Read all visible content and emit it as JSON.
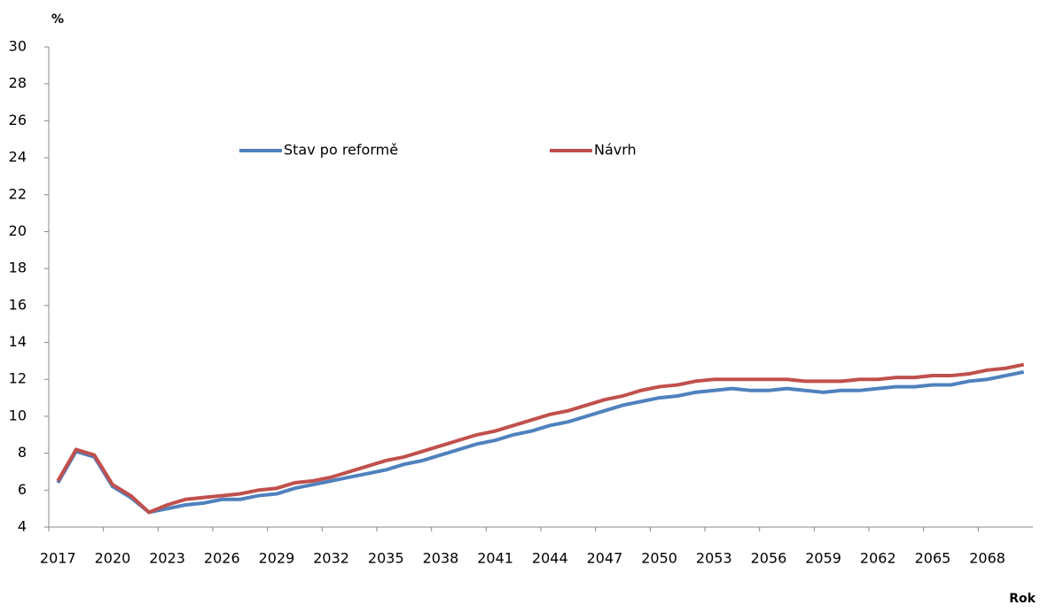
{
  "chart_data": {
    "type": "line",
    "y_label": "%",
    "x_label": "Rok",
    "categories": [
      "2017",
      null,
      null,
      "2020",
      null,
      null,
      "2023",
      null,
      null,
      "2026",
      null,
      null,
      "2029",
      null,
      null,
      "2032",
      null,
      null,
      "2035",
      null,
      null,
      "2038",
      null,
      null,
      "2041",
      null,
      null,
      "2044",
      null,
      null,
      "2047",
      null,
      null,
      "2050",
      null,
      null,
      "2053",
      null,
      null,
      "2056",
      null,
      null,
      "2059",
      null,
      null,
      "2062",
      null,
      null,
      "2065",
      null,
      null,
      "2068",
      null,
      null
    ],
    "series": [
      {
        "name": "Stav po reformě",
        "color": "#4f81bd",
        "values": [
          6.4,
          8.1,
          7.8,
          6.2,
          5.6,
          4.8,
          5.0,
          5.2,
          5.3,
          5.5,
          5.5,
          5.7,
          5.8,
          6.1,
          6.3,
          6.5,
          6.7,
          6.9,
          7.1,
          7.4,
          7.6,
          7.9,
          8.2,
          8.5,
          8.7,
          9.0,
          9.2,
          9.5,
          9.7,
          10.0,
          10.3,
          10.6,
          10.8,
          11.0,
          11.1,
          11.3,
          11.4,
          11.5,
          11.4,
          11.4,
          11.5,
          11.4,
          11.3,
          11.4,
          11.4,
          11.5,
          11.6,
          11.6,
          11.7,
          11.7,
          11.9,
          12.0,
          12.2,
          12.4
        ]
      },
      {
        "name": "Návrh",
        "color": "#c0504d",
        "values": [
          6.5,
          8.2,
          7.9,
          6.3,
          5.7,
          4.8,
          5.2,
          5.5,
          5.6,
          5.7,
          5.8,
          6.0,
          6.1,
          6.4,
          6.5,
          6.7,
          7.0,
          7.3,
          7.6,
          7.8,
          8.1,
          8.4,
          8.7,
          9.0,
          9.2,
          9.5,
          9.8,
          10.1,
          10.3,
          10.6,
          10.9,
          11.1,
          11.4,
          11.6,
          11.7,
          11.9,
          12.0,
          12.0,
          12.0,
          12.0,
          12.0,
          11.9,
          11.9,
          11.9,
          12.0,
          12.0,
          12.1,
          12.1,
          12.2,
          12.2,
          12.3,
          12.5,
          12.6,
          12.8
        ]
      }
    ],
    "ylim": [
      4,
      30
    ],
    "yticks": [
      4,
      6,
      8,
      10,
      12,
      14,
      16,
      18,
      20,
      22,
      24,
      26,
      28,
      30
    ],
    "grid": false
  }
}
